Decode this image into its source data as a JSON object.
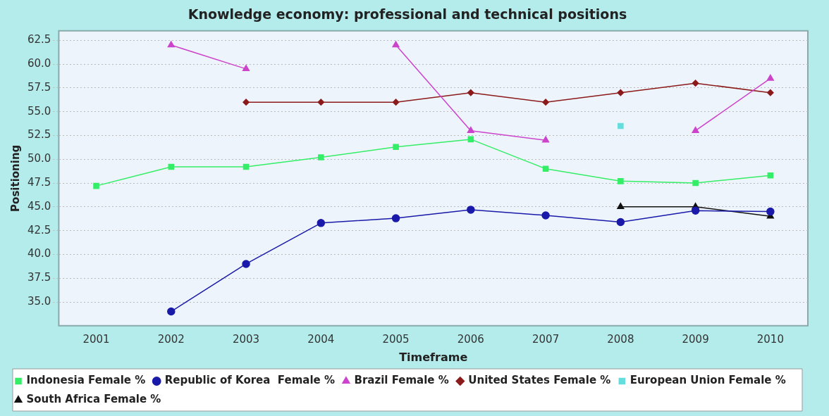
{
  "chart_data": {
    "type": "line",
    "title": "Knowledge economy: professional and technical positions",
    "xlabel": "Timeframe",
    "ylabel": "Positioning",
    "categories": [
      "2001",
      "2002",
      "2003",
      "2004",
      "2005",
      "2006",
      "2007",
      "2008",
      "2009",
      "2010"
    ],
    "series": [
      {
        "name": "Indonesia Female %",
        "color": "#33ee66",
        "marker": "square",
        "values": [
          47.2,
          49.2,
          49.2,
          50.2,
          51.3,
          52.1,
          49.0,
          47.7,
          47.5,
          48.3
        ]
      },
      {
        "name": "Republic of Korea  Female %",
        "color": "#1a1aaa",
        "marker": "circle",
        "values": [
          null,
          34.0,
          39.0,
          43.3,
          43.8,
          44.7,
          44.1,
          43.4,
          44.6,
          44.5
        ]
      },
      {
        "name": "Brazil Female %",
        "color": "#cc44cc",
        "marker": "triangle",
        "values": [
          null,
          62.0,
          59.5,
          null,
          62.0,
          53.0,
          52.0,
          null,
          53.0,
          58.5
        ]
      },
      {
        "name": "United States Female %",
        "color": "#8b1a1a",
        "marker": "diamond",
        "values": [
          null,
          null,
          56.0,
          56.0,
          56.0,
          57.0,
          56.0,
          57.0,
          58.0,
          57.0
        ]
      },
      {
        "name": "European Union Female %",
        "color": "#66dddd",
        "marker": "square",
        "values": [
          null,
          null,
          null,
          null,
          null,
          null,
          null,
          53.5,
          null,
          null
        ]
      },
      {
        "name": "South Africa Female %",
        "color": "#111111",
        "marker": "triangle",
        "values": [
          null,
          null,
          null,
          null,
          null,
          null,
          null,
          45.0,
          45.0,
          44.0
        ]
      }
    ],
    "ylim": [
      32.5,
      63.5
    ],
    "yticks": [
      {
        "value": 35,
        "label": "35.0"
      },
      37.5,
      {
        "value": 40,
        "label": "40.0"
      },
      42.5,
      {
        "value": 45,
        "label": "45.0"
      },
      47.5,
      {
        "value": 50,
        "label": "50.0"
      },
      52.5,
      {
        "value": 55,
        "label": "55.0"
      },
      57.5,
      {
        "value": 60,
        "label": "60.0"
      },
      62.5
    ],
    "grid": "y",
    "legend": "bottom"
  }
}
